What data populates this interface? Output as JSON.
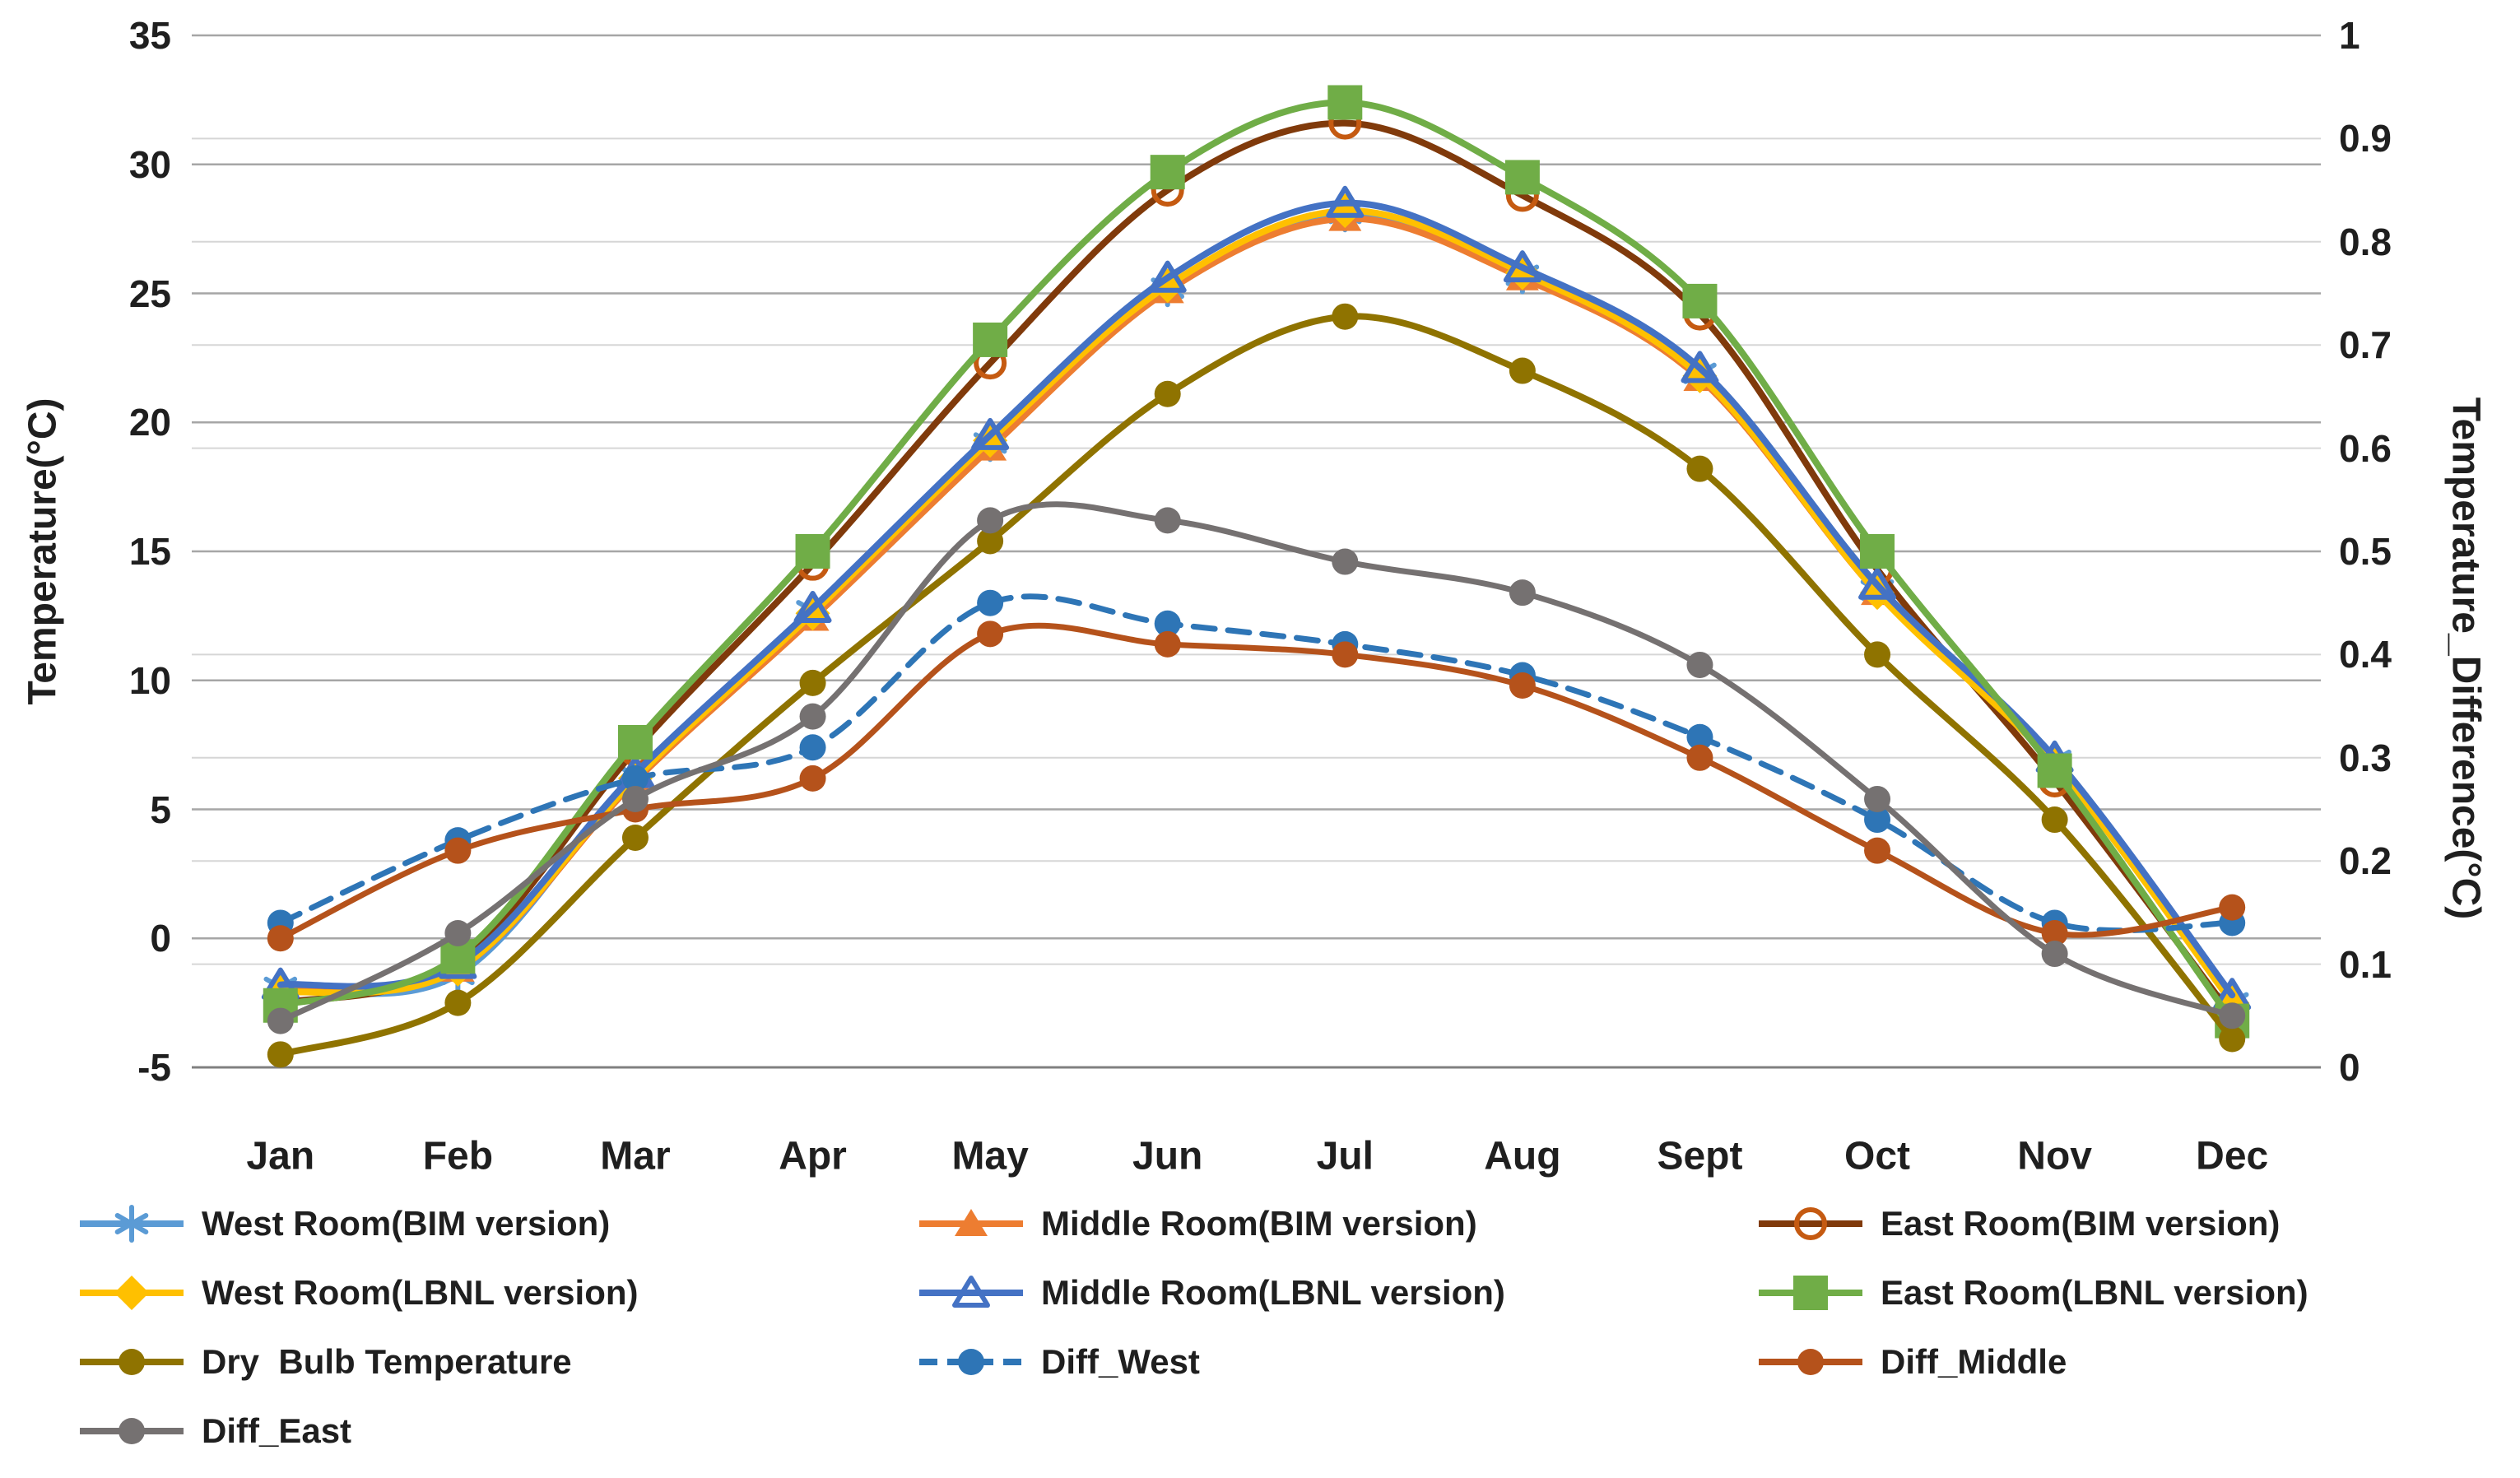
{
  "chart_data": {
    "type": "line",
    "title": "",
    "x_categories": [
      "Jan",
      "Feb",
      "Mar",
      "Apr",
      "May",
      "Jun",
      "Jul",
      "Aug",
      "Sept",
      "Oct",
      "Nov",
      "Dec"
    ],
    "left_axis": {
      "title": "Temperature(°C)",
      "min": -5,
      "max": 35,
      "tick_step": 5,
      "ticks": [
        "35",
        "30",
        "25",
        "20",
        "15",
        "10",
        "5",
        "0",
        "-5"
      ]
    },
    "right_axis": {
      "title": "Temperature_Difference(°C)",
      "min": 0,
      "max": 1,
      "tick_step": 0.1,
      "ticks": [
        "1",
        "0.9",
        "0.8",
        "0.7",
        "0.6",
        "0.5",
        "0.4",
        "0.3",
        "0.2",
        "0.1",
        "0"
      ]
    },
    "grid": {
      "major_color": "#a6a6a6",
      "minor_color": "#d6d6d6",
      "baseline_color": "#808080"
    },
    "legend_position": "bottom",
    "series": [
      {
        "id": "west_bim",
        "name": "West Room(BIM version)",
        "axis": "left",
        "color": "#5B9BD5",
        "marker": "asterisk",
        "line": "solid",
        "legend_col": 0,
        "legend_row": 0,
        "values": [
          -1.9,
          -1.4,
          6.3,
          12.7,
          19.2,
          25.2,
          28.1,
          25.7,
          21.9,
          13.5,
          6.9,
          -2.5
        ]
      },
      {
        "id": "middle_bim",
        "name": "Middle Room(BIM version)",
        "axis": "left",
        "color": "#ED7D31",
        "marker": "triangle",
        "line": "solid",
        "legend_col": 1,
        "legend_row": 0,
        "values": [
          -2.0,
          -1.2,
          6.1,
          12.4,
          19.0,
          25.1,
          27.9,
          25.6,
          21.7,
          13.4,
          6.8,
          -2.5
        ]
      },
      {
        "id": "east_bim",
        "name": "East Room(BIM version)",
        "axis": "left",
        "color": "#803A0B",
        "marker": "circle-open",
        "marker_color": "#C55A11",
        "line": "solid",
        "legend_col": 2,
        "legend_row": 0,
        "values": [
          -2.5,
          -0.9,
          7.3,
          14.5,
          22.3,
          29.0,
          31.6,
          28.8,
          24.2,
          14.3,
          6.1,
          -3.0
        ]
      },
      {
        "id": "west_lbnl",
        "name": "West Room(LBNL version)",
        "axis": "left",
        "color": "#FFC000",
        "marker": "diamond",
        "line": "solid",
        "legend_col": 0,
        "legend_row": 1,
        "values": [
          -2.1,
          -1.2,
          6.2,
          12.6,
          19.3,
          25.3,
          28.2,
          25.8,
          21.8,
          13.4,
          6.7,
          -2.5
        ]
      },
      {
        "id": "middle_lbnl",
        "name": "Middle Room(LBNL version)",
        "axis": "left",
        "color": "#4472C4",
        "marker": "triangle-open",
        "line": "solid",
        "legend_col": 1,
        "legend_row": 1,
        "values": [
          -1.8,
          -1.0,
          6.4,
          12.8,
          19.5,
          25.6,
          28.5,
          26.0,
          22.1,
          13.7,
          7.0,
          -2.2
        ]
      },
      {
        "id": "east_lbnl",
        "name": "East Room(LBNL version)",
        "axis": "left",
        "color": "#70AD47",
        "marker": "square",
        "line": "solid",
        "legend_col": 2,
        "legend_row": 1,
        "values": [
          -2.6,
          -0.7,
          7.6,
          15.0,
          23.2,
          29.7,
          32.4,
          29.5,
          24.7,
          15.0,
          6.5,
          -3.2
        ]
      },
      {
        "id": "dry_bulb",
        "name": "Dry  Bulb Temperature",
        "axis": "left",
        "color": "#8F7300",
        "marker": "circle",
        "line": "solid",
        "legend_col": 0,
        "legend_row": 2,
        "values": [
          -4.5,
          -2.5,
          3.9,
          9.9,
          15.4,
          21.1,
          24.1,
          22.0,
          18.2,
          11.0,
          4.6,
          -3.9
        ]
      },
      {
        "id": "diff_west",
        "name": "Diff_West",
        "axis": "right",
        "color": "#2E75B6",
        "marker": "circle",
        "line": "dashed",
        "legend_col": 1,
        "legend_row": 2,
        "values": [
          0.14,
          0.22,
          0.28,
          0.31,
          0.45,
          0.43,
          0.41,
          0.38,
          0.32,
          0.24,
          0.14,
          0.14
        ]
      },
      {
        "id": "diff_middle",
        "name": "Diff_Middle",
        "axis": "right",
        "color": "#B5521B",
        "marker": "circle",
        "line": "solid",
        "legend_col": 2,
        "legend_row": 2,
        "values": [
          0.125,
          0.21,
          0.25,
          0.28,
          0.42,
          0.41,
          0.4,
          0.37,
          0.3,
          0.21,
          0.13,
          0.155
        ]
      },
      {
        "id": "diff_east",
        "name": "Diff_East",
        "axis": "right",
        "color": "#757171",
        "marker": "circle",
        "line": "solid",
        "legend_col": 0,
        "legend_row": 3,
        "values": [
          0.045,
          0.13,
          0.26,
          0.34,
          0.53,
          0.53,
          0.49,
          0.46,
          0.39,
          0.26,
          0.11,
          0.05
        ]
      }
    ]
  }
}
